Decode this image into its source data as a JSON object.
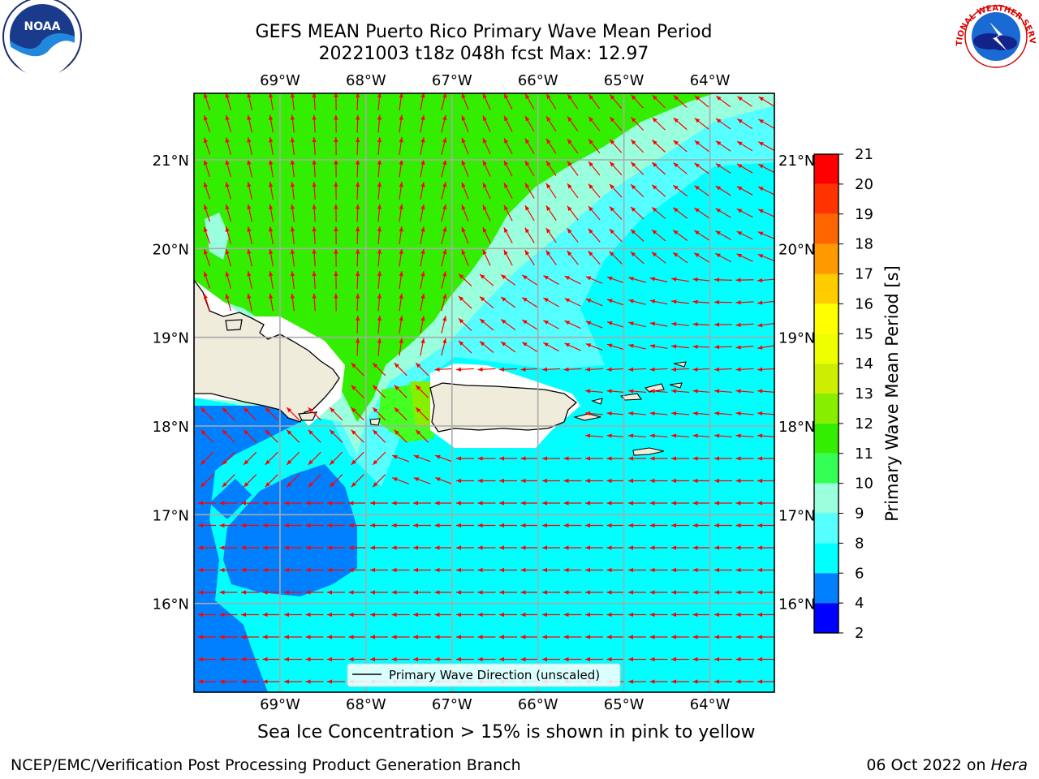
{
  "header": {
    "title_line1": "GEFS MEAN Puerto Rico Primary Wave Mean Period",
    "title_line2": "20221003 t18z 048h fcst   Max: 12.97"
  },
  "logos": {
    "left": {
      "name": "noaa-logo",
      "text": "NOAA"
    },
    "right": {
      "name": "nws-logo",
      "text": "NATIONAL WEATHER SERVICE"
    }
  },
  "map": {
    "lon_ticks": [
      "69°W",
      "68°W",
      "67°W",
      "66°W",
      "65°W",
      "64°W"
    ],
    "lat_ticks": [
      "21°N",
      "20°N",
      "19°N",
      "18°N",
      "17°N",
      "16°N"
    ],
    "lon_range": [
      -70.0,
      -63.25
    ],
    "lat_range": [
      15.0,
      21.75
    ],
    "land_color": "#efecdc",
    "vector_color": "#ff0000",
    "legend_label": "Primary Wave Direction (unscaled)",
    "dominant_direction": "westward in south, northward in north",
    "regions": [
      {
        "name": "green-band-north",
        "period_bin": "11-12",
        "color": "#33ee00"
      },
      {
        "name": "aqua-shelf",
        "period_bin": "9-10",
        "color": "#99ffdd"
      },
      {
        "name": "cyan-sea",
        "period_bin": "6-8",
        "color": "#00ffff"
      },
      {
        "name": "blue-southwest",
        "period_bin": "4-6",
        "color": "#0080ff"
      }
    ]
  },
  "colorbar": {
    "label": "Primary Wave Mean Period [s]",
    "ticks": [
      "2",
      "4",
      "6",
      "8",
      "9",
      "10",
      "11",
      "12",
      "13",
      "14",
      "15",
      "16",
      "17",
      "18",
      "19",
      "20",
      "21"
    ],
    "colors": [
      "#0000ff",
      "#0080ff",
      "#00ffff",
      "#55ffff",
      "#99ffdd",
      "#33ff55",
      "#33ee00",
      "#88ee00",
      "#ccee00",
      "#eeff00",
      "#ffff00",
      "#ffcc00",
      "#ff9900",
      "#ff6600",
      "#ff3300",
      "#ff0000"
    ]
  },
  "notes": {
    "sea_ice": "Sea Ice Concentration > 15% is shown in pink to yellow"
  },
  "footer": {
    "left": "NCEP/EMC/Verification Post Processing Product Generation Branch",
    "date": "06 Oct 2022 on",
    "machine": "Hera"
  }
}
